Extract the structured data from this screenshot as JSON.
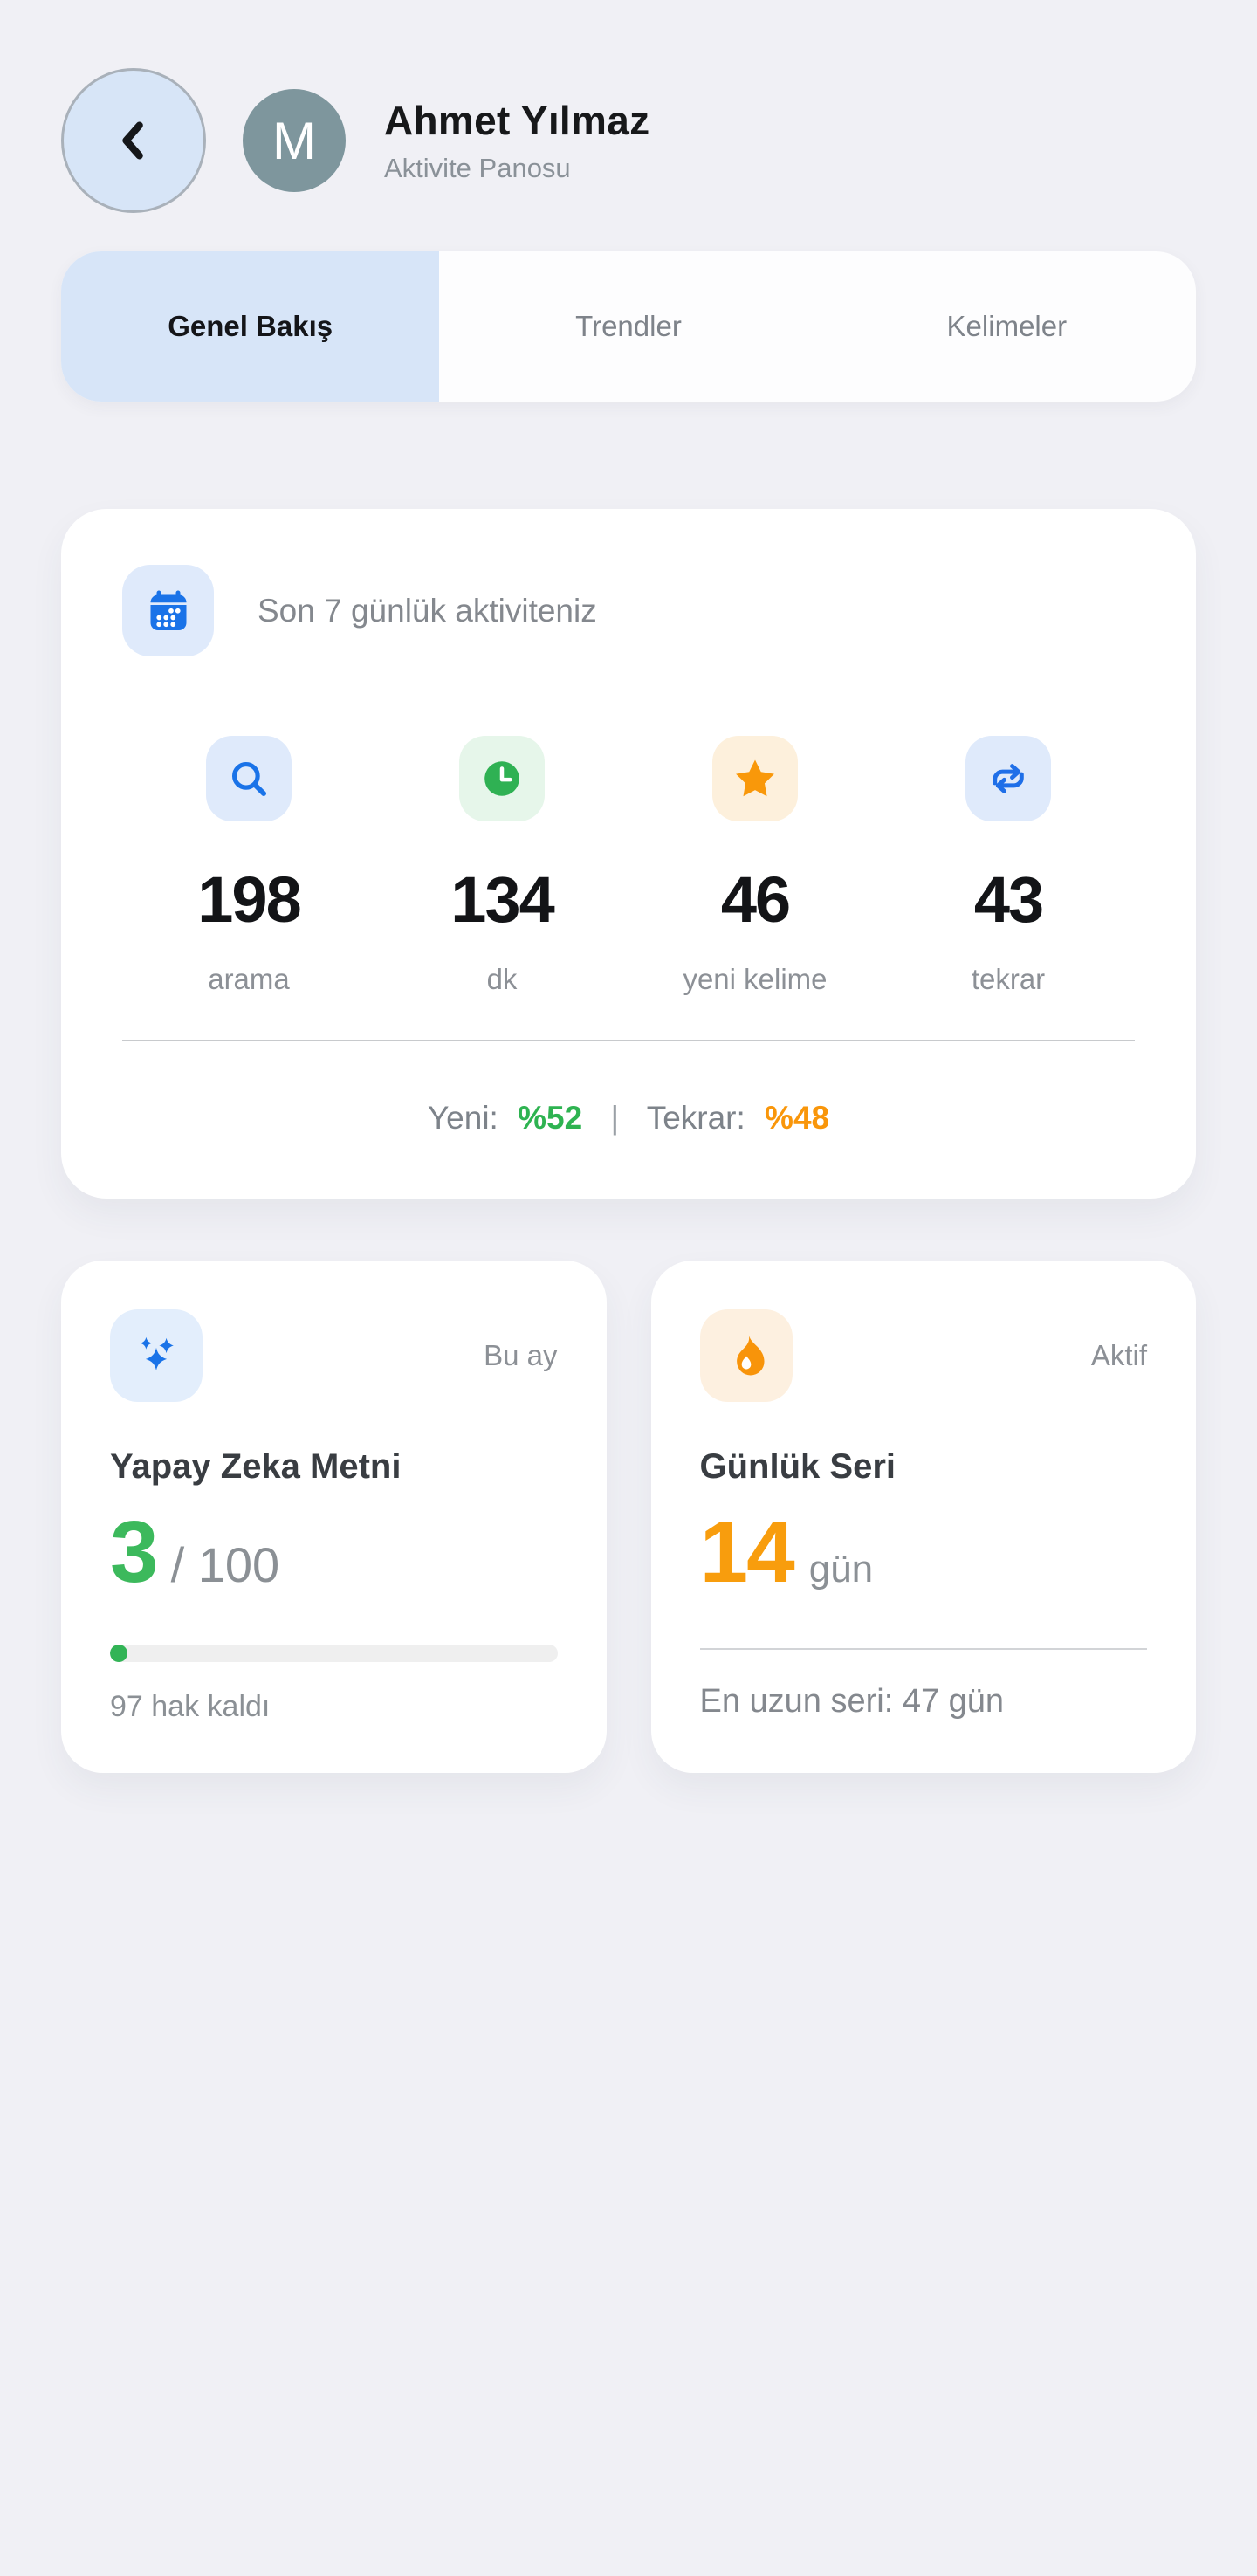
{
  "header": {
    "avatar_initial": "M",
    "title": "Ahmet Yılmaz",
    "subtitle": "Aktivite Panosu"
  },
  "tabs": [
    {
      "label": "Genel Bakış",
      "active": true
    },
    {
      "label": "Trendler",
      "active": false
    },
    {
      "label": "Kelimeler",
      "active": false
    }
  ],
  "activity_card": {
    "icon": "calendar-icon",
    "title": "Son 7 günlük aktiviteniz",
    "stats": [
      {
        "icon": "search-icon",
        "value": "198",
        "label": "arama",
        "accent": "#1a73e8",
        "chip_bg": "#dfeafb"
      },
      {
        "icon": "clock-icon",
        "value": "134",
        "label": "dk",
        "accent": "#2fb153",
        "chip_bg": "#e6f6ea"
      },
      {
        "icon": "star-icon",
        "value": "46",
        "label": "yeni kelime",
        "accent": "#f9980a",
        "chip_bg": "#fdf0dc"
      },
      {
        "icon": "repeat-icon",
        "value": "43",
        "label": "tekrar",
        "accent": "#1f6fe8",
        "chip_bg": "#dfeafb"
      }
    ],
    "footer": {
      "new_label": "Yeni:",
      "new_value": "%52",
      "new_color": "#2eb351",
      "separator": "|",
      "repeat_label": "Tekrar:",
      "repeat_value": "%48",
      "repeat_color": "#f9960a"
    }
  },
  "ai_card": {
    "icon": "sparkles-icon",
    "badge": "Bu ay",
    "title": "Yapay Zeka Metni",
    "value": "3",
    "value_color": "#3cb95c",
    "total": "/ 100",
    "progress_pct": 3,
    "remaining": "97 hak kaldı"
  },
  "streak_card": {
    "icon": "flame-icon",
    "badge": "Aktif",
    "title": "Günlük Seri",
    "value": "14",
    "value_color": "#f89d0d",
    "unit": "gün",
    "footer": "En uzun seri: 47 gün"
  }
}
